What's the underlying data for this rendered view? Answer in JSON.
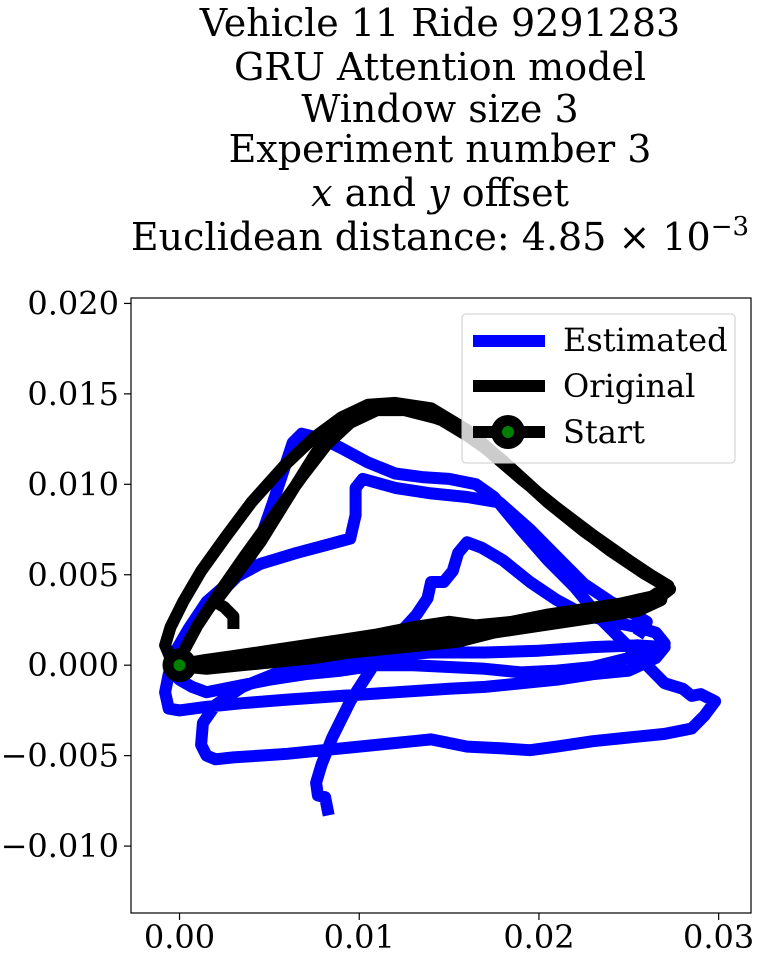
{
  "chart_data": {
    "type": "line",
    "title_lines": [
      "Vehicle 11 Ride 9291283",
      "GRU Attention model",
      "Window size 3",
      "Experiment number 3"
    ],
    "offset_line": {
      "x_var": "x",
      "and": " and ",
      "y_var": "y",
      "suffix": " offset"
    },
    "distance_line": {
      "prefix": "Euclidean distance: 4.85 × 10",
      "exponent": "−3"
    },
    "xlim": [
      -0.0027,
      0.0318
    ],
    "ylim": [
      -0.0137,
      0.0203
    ],
    "x_ticks": [
      {
        "value": 0.0,
        "label": "0.00"
      },
      {
        "value": 0.01,
        "label": "0.01"
      },
      {
        "value": 0.02,
        "label": "0.02"
      },
      {
        "value": 0.03,
        "label": "0.03"
      }
    ],
    "y_ticks": [
      {
        "value": 0.02,
        "label": "0.020"
      },
      {
        "value": 0.015,
        "label": "0.015"
      },
      {
        "value": 0.01,
        "label": "0.010"
      },
      {
        "value": 0.005,
        "label": "0.005"
      },
      {
        "value": 0.0,
        "label": "0.000"
      },
      {
        "value": -0.005,
        "label": "−0.005"
      },
      {
        "value": -0.01,
        "label": "−0.010"
      }
    ],
    "grid": false,
    "legend_position": "top-right",
    "series": [
      {
        "name": "Estimated",
        "color": "#0000ff",
        "points": [
          [
            0.0083,
            -0.0083
          ],
          [
            0.0081,
            -0.0073
          ],
          [
            0.0077,
            -0.0072
          ],
          [
            0.0076,
            -0.0065
          ],
          [
            0.0079,
            -0.0055
          ],
          [
            0.0085,
            -0.004
          ],
          [
            0.0095,
            -0.002
          ],
          [
            0.0108,
            0.0
          ],
          [
            0.012,
            0.0015
          ],
          [
            0.0132,
            0.0028
          ],
          [
            0.0138,
            0.0037
          ],
          [
            0.014,
            0.0046
          ],
          [
            0.0147,
            0.0046
          ],
          [
            0.0152,
            0.0052
          ],
          [
            0.0155,
            0.0062
          ],
          [
            0.016,
            0.0068
          ],
          [
            0.0168,
            0.0065
          ],
          [
            0.018,
            0.0058
          ],
          [
            0.0195,
            0.0046
          ],
          [
            0.021,
            0.0036
          ],
          [
            0.0225,
            0.0028
          ],
          [
            0.024,
            0.0024
          ],
          [
            0.0255,
            0.0021
          ],
          [
            0.0265,
            0.0018
          ],
          [
            0.027,
            0.0012
          ],
          [
            0.0265,
            0.0008
          ],
          [
            0.025,
            0.0004
          ],
          [
            0.023,
            -0.0001
          ],
          [
            0.021,
            -0.0003
          ],
          [
            0.019,
            -0.0004
          ],
          [
            0.017,
            -0.0002
          ],
          [
            0.015,
            -0.0001
          ],
          [
            0.013,
            0.0
          ],
          [
            0.011,
            0.0
          ],
          [
            0.009,
            -0.0003
          ],
          [
            0.007,
            -0.0005
          ],
          [
            0.005,
            -0.0008
          ],
          [
            0.003,
            -0.0012
          ],
          [
            0.0015,
            -0.0015
          ],
          [
            0.0007,
            -0.0012
          ],
          [
            0.0,
            -0.0008
          ],
          [
            -0.0005,
            -0.0003
          ],
          [
            0.0,
            0.0006
          ],
          [
            0.0008,
            0.002
          ],
          [
            0.0015,
            0.003
          ],
          [
            0.0025,
            0.0042
          ],
          [
            0.0035,
            0.0052
          ],
          [
            0.0045,
            0.007
          ],
          [
            0.0052,
            0.009
          ],
          [
            0.0058,
            0.0108
          ],
          [
            0.0063,
            0.0123
          ],
          [
            0.0068,
            0.0128
          ],
          [
            0.008,
            0.0125
          ],
          [
            0.009,
            0.012
          ],
          [
            0.0105,
            0.0112
          ],
          [
            0.012,
            0.0106
          ],
          [
            0.0135,
            0.0104
          ],
          [
            0.015,
            0.0103
          ],
          [
            0.0165,
            0.01
          ],
          [
            0.0175,
            0.0093
          ],
          [
            0.019,
            0.0075
          ],
          [
            0.0205,
            0.0058
          ],
          [
            0.022,
            0.0043
          ],
          [
            0.0235,
            0.0025
          ],
          [
            0.025,
            0.001
          ],
          [
            0.026,
            0.0
          ],
          [
            0.027,
            -0.001
          ],
          [
            0.028,
            -0.0013
          ],
          [
            0.0285,
            -0.0017
          ],
          [
            0.029,
            -0.0016
          ],
          [
            0.0298,
            -0.002
          ],
          [
            0.0292,
            -0.0028
          ],
          [
            0.0285,
            -0.0035
          ],
          [
            0.027,
            -0.0038
          ],
          [
            0.025,
            -0.004
          ],
          [
            0.023,
            -0.0042
          ],
          [
            0.021,
            -0.0045
          ],
          [
            0.0195,
            -0.0047
          ],
          [
            0.018,
            -0.0046
          ],
          [
            0.016,
            -0.0045
          ],
          [
            0.015,
            -0.0043
          ],
          [
            0.014,
            -0.0041
          ],
          [
            0.013,
            -0.0042
          ],
          [
            0.012,
            -0.0043
          ],
          [
            0.01,
            -0.0045
          ],
          [
            0.008,
            -0.0047
          ],
          [
            0.006,
            -0.0049
          ],
          [
            0.0045,
            -0.005
          ],
          [
            0.003,
            -0.0051
          ],
          [
            0.002,
            -0.0052
          ],
          [
            0.0015,
            -0.005
          ],
          [
            0.0012,
            -0.0044
          ],
          [
            0.0013,
            -0.0032
          ],
          [
            0.002,
            -0.0022
          ],
          [
            0.0035,
            -0.0012
          ],
          [
            0.0055,
            -0.0004
          ],
          [
            0.008,
            0.0001
          ],
          [
            0.011,
            0.0005
          ],
          [
            0.014,
            0.0007
          ],
          [
            0.017,
            0.0007
          ],
          [
            0.02,
            0.0008
          ],
          [
            0.023,
            0.001
          ],
          [
            0.0255,
            0.0011
          ],
          [
            0.027,
            0.001
          ],
          [
            0.0265,
            0.0004
          ],
          [
            0.025,
            -0.0003
          ],
          [
            0.023,
            -0.0005
          ],
          [
            0.021,
            -0.0008
          ],
          [
            0.019,
            -0.001
          ],
          [
            0.017,
            -0.0012
          ],
          [
            0.015,
            -0.0013
          ],
          [
            0.012,
            -0.0015
          ],
          [
            0.009,
            -0.0017
          ],
          [
            0.006,
            -0.0019
          ],
          [
            0.0035,
            -0.0021
          ],
          [
            0.0015,
            -0.0023
          ],
          [
            0.0,
            -0.0025
          ],
          [
            -0.0006,
            -0.0024
          ],
          [
            -0.0008,
            -0.0015
          ],
          [
            -0.0006,
            -0.0005
          ],
          [
            -0.0002,
            0.0008
          ],
          [
            0.0005,
            0.002
          ],
          [
            0.0015,
            0.0035
          ],
          [
            0.003,
            0.0048
          ],
          [
            0.0045,
            0.0056
          ],
          [
            0.0065,
            0.0062
          ],
          [
            0.008,
            0.0066
          ],
          [
            0.0095,
            0.007
          ],
          [
            0.0098,
            0.0083
          ],
          [
            0.0098,
            0.0098
          ],
          [
            0.0102,
            0.0103
          ],
          [
            0.012,
            0.0098
          ],
          [
            0.014,
            0.0095
          ],
          [
            0.016,
            0.0093
          ],
          [
            0.0178,
            0.009
          ],
          [
            0.0195,
            0.0075
          ],
          [
            0.021,
            0.006
          ],
          [
            0.0225,
            0.0045
          ],
          [
            0.024,
            0.0035
          ],
          [
            0.025,
            0.003
          ],
          [
            0.026,
            0.0024
          ],
          [
            0.0255,
            0.0016
          ]
        ]
      },
      {
        "name": "Original",
        "color": "#000000",
        "points": [
          [
            0.003,
            0.002
          ],
          [
            0.003,
            0.0027
          ],
          [
            0.0025,
            0.0032
          ],
          [
            0.002,
            0.0035
          ],
          [
            0.003,
            0.0048
          ],
          [
            0.0045,
            0.0068
          ],
          [
            0.006,
            0.0092
          ],
          [
            0.0075,
            0.0116
          ],
          [
            0.0085,
            0.013
          ],
          [
            0.01,
            0.014
          ],
          [
            0.0115,
            0.0143
          ],
          [
            0.013,
            0.0141
          ],
          [
            0.015,
            0.0134
          ],
          [
            0.017,
            0.012
          ],
          [
            0.019,
            0.0103
          ],
          [
            0.021,
            0.0087
          ],
          [
            0.023,
            0.0072
          ],
          [
            0.025,
            0.0058
          ],
          [
            0.0265,
            0.0048
          ],
          [
            0.0273,
            0.0042
          ],
          [
            0.0265,
            0.0036
          ],
          [
            0.025,
            0.0032
          ],
          [
            0.023,
            0.0029
          ],
          [
            0.021,
            0.0025
          ],
          [
            0.019,
            0.0022
          ],
          [
            0.017,
            0.002
          ],
          [
            0.015,
            0.0018
          ],
          [
            0.013,
            0.0015
          ],
          [
            0.011,
            0.0012
          ],
          [
            0.009,
            0.0009
          ],
          [
            0.007,
            0.0006
          ],
          [
            0.005,
            0.0004
          ],
          [
            0.003,
            0.0002
          ],
          [
            0.0015,
            0.0
          ],
          [
            0.0005,
            0.0001
          ],
          [
            -0.0005,
            0.0004
          ],
          [
            -0.0008,
            0.0011
          ],
          [
            -0.0005,
            0.0021
          ],
          [
            0.0002,
            0.0035
          ],
          [
            0.0012,
            0.0052
          ],
          [
            0.0025,
            0.007
          ],
          [
            0.004,
            0.009
          ],
          [
            0.0058,
            0.011
          ],
          [
            0.0075,
            0.0126
          ],
          [
            0.009,
            0.0137
          ],
          [
            0.0105,
            0.0144
          ],
          [
            0.012,
            0.0145
          ],
          [
            0.014,
            0.0142
          ],
          [
            0.016,
            0.013
          ],
          [
            0.018,
            0.0113
          ],
          [
            0.02,
            0.0095
          ],
          [
            0.022,
            0.0078
          ],
          [
            0.024,
            0.0063
          ],
          [
            0.0258,
            0.0051
          ],
          [
            0.027,
            0.0044
          ],
          [
            0.0268,
            0.0036
          ],
          [
            0.0255,
            0.003
          ],
          [
            0.0235,
            0.0027
          ],
          [
            0.0215,
            0.0024
          ],
          [
            0.0195,
            0.0021
          ],
          [
            0.0175,
            0.0018
          ],
          [
            0.0155,
            0.0013
          ],
          [
            0.0135,
            0.0011
          ],
          [
            0.0115,
            0.0009
          ],
          [
            0.0095,
            0.0007
          ],
          [
            0.0075,
            0.0004
          ],
          [
            0.0055,
            0.0002
          ],
          [
            0.0035,
            0.0
          ],
          [
            0.0015,
            -0.0002
          ],
          [
            0.0005,
            -0.0001
          ],
          [
            0.0,
            0.0
          ],
          [
            0.0003,
            0.0009
          ],
          [
            0.001,
            0.0022
          ],
          [
            0.0022,
            0.004
          ],
          [
            0.0036,
            0.006
          ],
          [
            0.0052,
            0.0082
          ],
          [
            0.0068,
            0.0104
          ],
          [
            0.0082,
            0.0122
          ],
          [
            0.0095,
            0.0134
          ],
          [
            0.011,
            0.0141
          ],
          [
            0.0125,
            0.0141
          ],
          [
            0.0145,
            0.0136
          ],
          [
            0.0165,
            0.0124
          ],
          [
            0.0185,
            0.0108
          ],
          [
            0.0205,
            0.009
          ],
          [
            0.0225,
            0.0074
          ],
          [
            0.0245,
            0.006
          ],
          [
            0.0262,
            0.005
          ],
          [
            0.0272,
            0.0044
          ],
          [
            0.0263,
            0.0038
          ],
          [
            0.0245,
            0.0034
          ],
          [
            0.0225,
            0.0031
          ],
          [
            0.0205,
            0.0028
          ],
          [
            0.0185,
            0.0024
          ],
          [
            0.0165,
            0.0022
          ],
          [
            0.015,
            0.0024
          ],
          [
            0.013,
            0.0021
          ],
          [
            0.011,
            0.0017
          ],
          [
            0.009,
            0.0014
          ],
          [
            0.007,
            0.0011
          ],
          [
            0.005,
            0.0008
          ],
          [
            0.003,
            0.0005
          ],
          [
            0.0015,
            0.0003
          ],
          [
            0.0003,
            0.0001
          ],
          [
            0.0,
            0.0
          ]
        ]
      }
    ],
    "start_marker": {
      "name": "Start",
      "x": 0.0,
      "y": 0.0,
      "outer_color": "#000000",
      "inner_color": "#008000"
    }
  }
}
